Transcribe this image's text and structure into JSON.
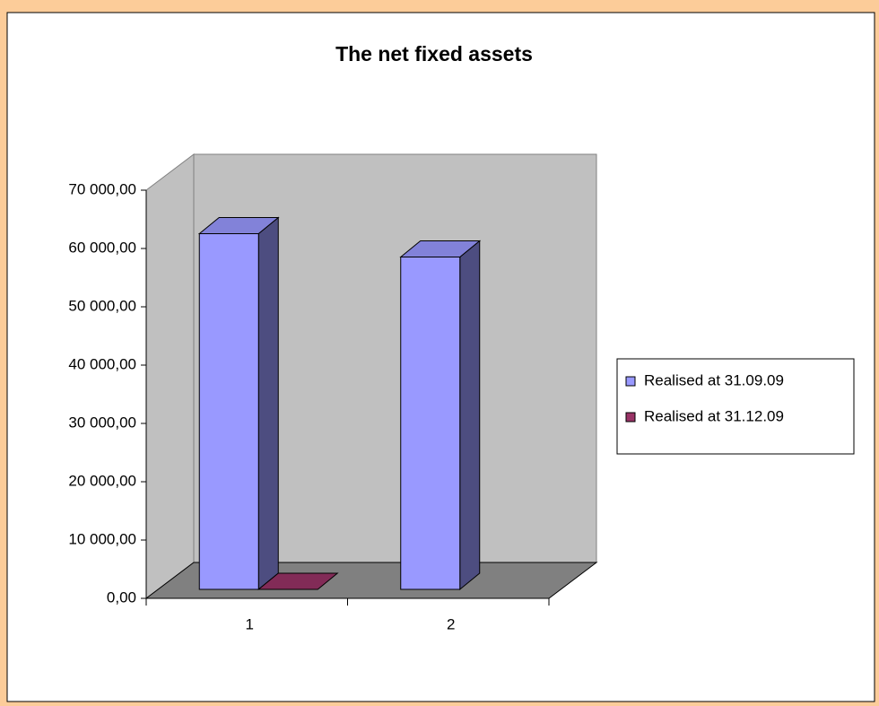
{
  "chart_data": {
    "type": "bar3d",
    "title": "The net fixed assets",
    "categories": [
      "1",
      "2"
    ],
    "series": [
      {
        "name": "Realised at 31.09.09",
        "color": "#9999ff",
        "values": [
          61000,
          57000
        ]
      },
      {
        "name": "Realised at 31.12.09",
        "color": "#993366",
        "values": [
          0,
          null
        ]
      }
    ],
    "ylim": [
      0,
      70000
    ],
    "yticks": [
      {
        "value": 0,
        "label": "0,00"
      },
      {
        "value": 10000,
        "label": "10 000,00"
      },
      {
        "value": 20000,
        "label": "20 000,00"
      },
      {
        "value": 30000,
        "label": "30 000,00"
      },
      {
        "value": 40000,
        "label": "40 000,00"
      },
      {
        "value": 50000,
        "label": "50 000,00"
      },
      {
        "value": 60000,
        "label": "60 000,00"
      },
      {
        "value": 70000,
        "label": "70 000,00"
      }
    ],
    "legend": "right"
  }
}
